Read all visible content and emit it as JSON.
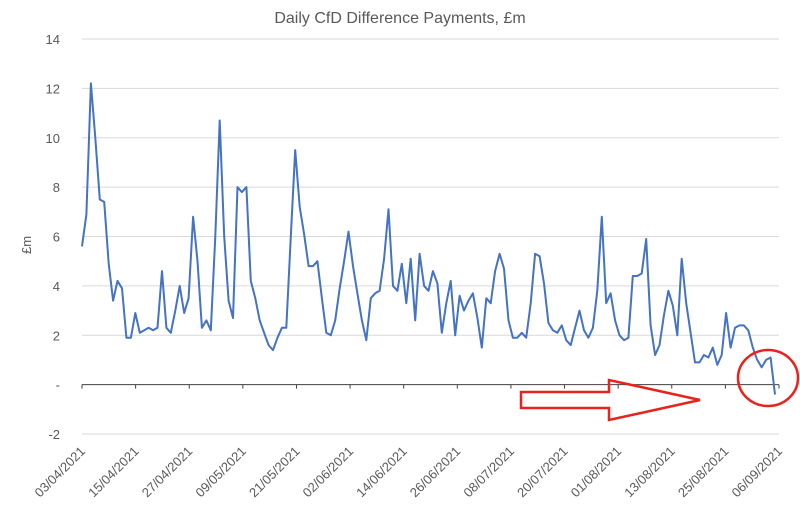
{
  "chart_data": {
    "type": "line",
    "title": "Daily CfD Difference Payments, £m",
    "xlabel": "",
    "ylabel": "£m",
    "ylim": [
      -2,
      14
    ],
    "yticks": [
      "-2",
      "-",
      "2",
      "4",
      "6",
      "8",
      "10",
      "12",
      "14"
    ],
    "ytick_values": [
      -2,
      0,
      2,
      4,
      6,
      8,
      10,
      12,
      14
    ],
    "grid": true,
    "x_tick_labels": [
      "03/04/2021",
      "15/04/2021",
      "27/04/2021",
      "09/05/2021",
      "21/05/2021",
      "02/06/2021",
      "14/06/2021",
      "26/06/2021",
      "08/07/2021",
      "20/07/2021",
      "01/08/2021",
      "13/08/2021",
      "25/08/2021",
      "06/09/2021"
    ],
    "x_start": "03/04/2021",
    "x_end": "06/09/2021",
    "series": [
      {
        "color": "#4472c4",
        "values": [
          5.6,
          6.9,
          12.2,
          10.0,
          7.5,
          7.4,
          4.9,
          3.4,
          4.2,
          3.9,
          1.9,
          1.9,
          2.9,
          2.1,
          2.2,
          2.3,
          2.2,
          2.3,
          4.6,
          2.3,
          2.1,
          3.0,
          4.0,
          2.9,
          3.5,
          6.8,
          5.0,
          2.3,
          2.6,
          2.2,
          6.0,
          10.7,
          6.0,
          3.4,
          2.7,
          8.0,
          7.8,
          8.0,
          4.2,
          3.5,
          2.6,
          2.1,
          1.6,
          1.4,
          1.9,
          2.3,
          2.3,
          6.0,
          9.5,
          7.2,
          6.1,
          4.8,
          4.8,
          5.0,
          3.5,
          2.1,
          2.0,
          2.6,
          3.9,
          5.0,
          6.2,
          4.8,
          3.7,
          2.6,
          1.8,
          3.5,
          3.7,
          3.8,
          5.1,
          7.1,
          4.0,
          3.8,
          4.9,
          3.3,
          5.1,
          2.6,
          5.3,
          4.0,
          3.8,
          4.6,
          4.1,
          2.1,
          3.3,
          4.2,
          2.0,
          3.6,
          3.0,
          3.4,
          3.7,
          2.7,
          1.5,
          3.5,
          3.3,
          4.6,
          5.3,
          4.7,
          2.6,
          1.9,
          1.9,
          2.1,
          1.9,
          3.3,
          5.3,
          5.2,
          4.1,
          2.5,
          2.2,
          2.1,
          2.4,
          1.8,
          1.6,
          2.3,
          3.0,
          2.2,
          1.9,
          2.3,
          3.8,
          6.8,
          3.3,
          3.7,
          2.6,
          2.0,
          1.8,
          1.9,
          4.4,
          4.4,
          4.5,
          5.9,
          2.4,
          1.2,
          1.6,
          2.8,
          3.8,
          3.2,
          2.0,
          5.1,
          3.3,
          2.1,
          0.9,
          0.9,
          1.2,
          1.1,
          1.5,
          0.8,
          1.2,
          2.9,
          1.5,
          2.3,
          2.4,
          2.4,
          2.2,
          1.5,
          1.0,
          0.7,
          1.0,
          1.1,
          -0.4
        ]
      }
    ],
    "annotations": [
      {
        "type": "arrow",
        "color": "#e8231e",
        "direction": "right"
      },
      {
        "type": "circle",
        "color": "#e8231e"
      }
    ]
  }
}
